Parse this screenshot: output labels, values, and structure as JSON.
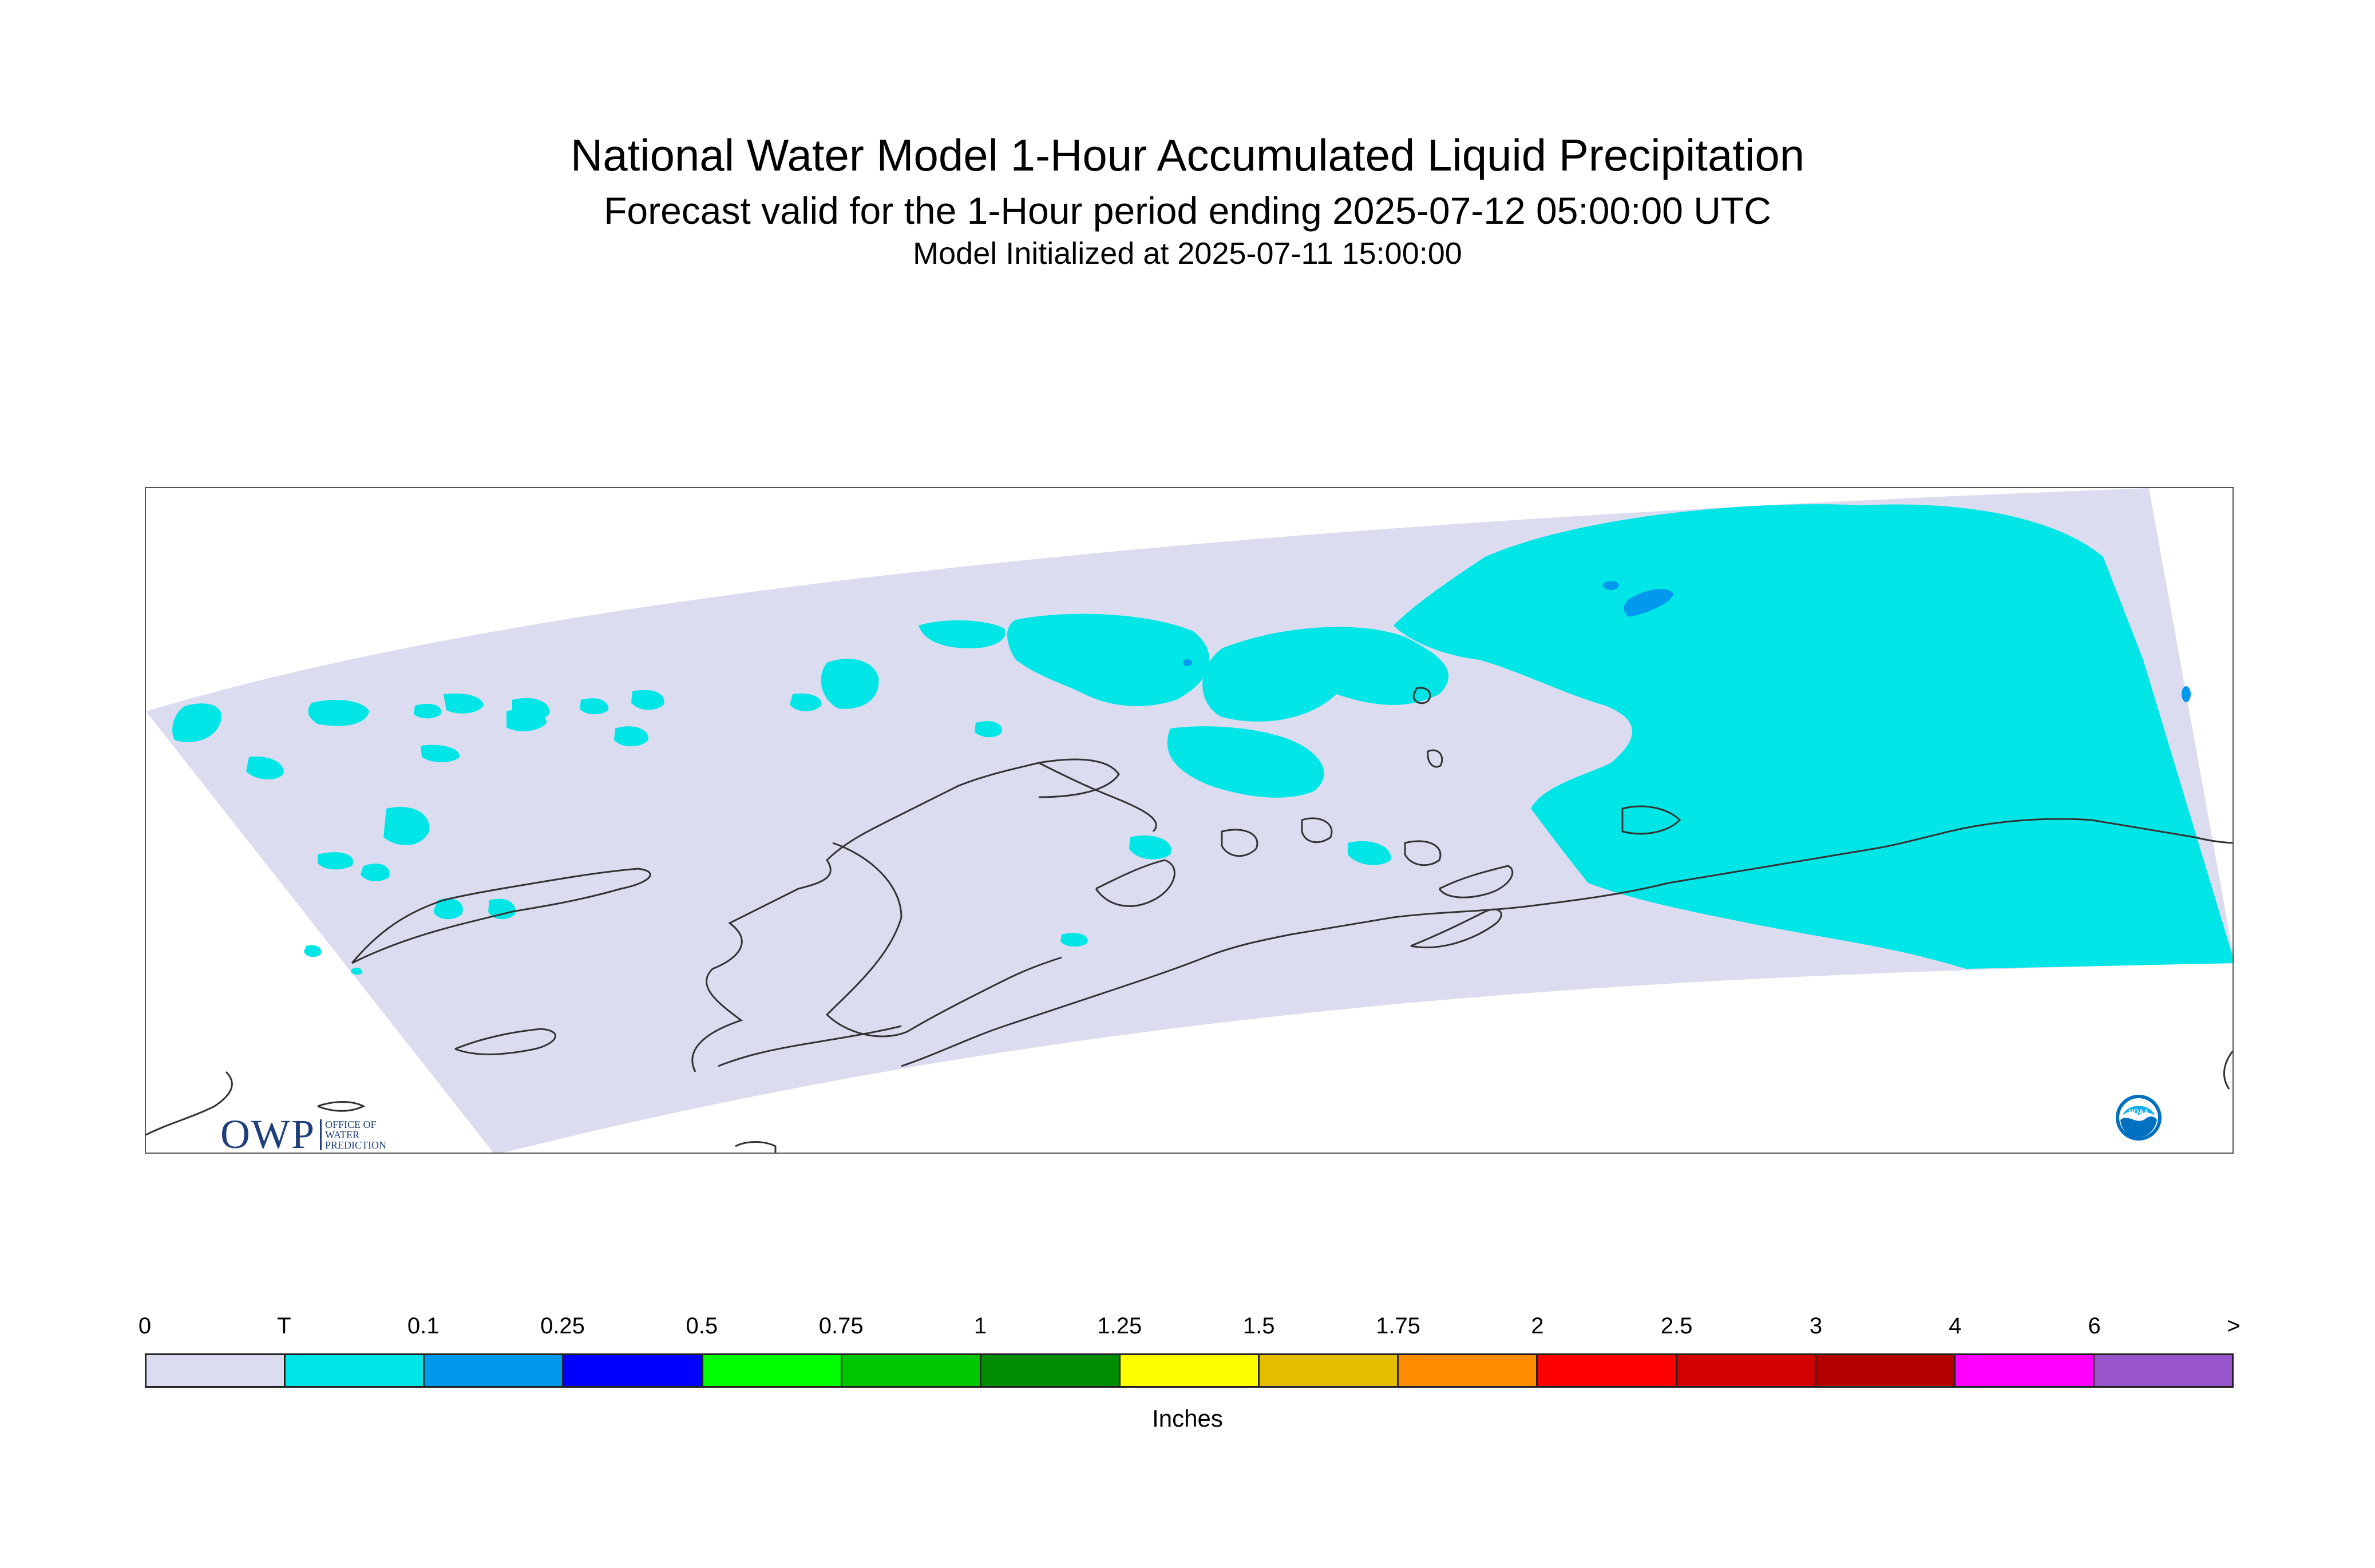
{
  "title": {
    "line1": "National Water Model 1-Hour Accumulated Liquid Precipitation",
    "line2": "Forecast valid for the 1-Hour period ending 2025-07-12 05:00:00 UTC",
    "line3": "Model Initialized at 2025-07-11 15:00:00"
  },
  "map": {
    "domain_color": "#dcdcf0",
    "trace_color": "#00e6e6",
    "light_color": "#0099ee",
    "coast_color": "#333333",
    "region": "Alaska"
  },
  "logos": {
    "owp_mark": "OWP",
    "owp_text": [
      "OFFICE OF",
      "WATER",
      "PREDICTION"
    ],
    "noaa_text": "NOAA"
  },
  "legend": {
    "labels": [
      "0",
      "T",
      "0.1",
      "0.25",
      "0.5",
      "0.75",
      "1",
      "1.25",
      "1.5",
      "1.75",
      "2",
      "2.5",
      "3",
      "4",
      "6",
      ">"
    ],
    "colors": [
      "#dcdcf0",
      "#00e6e6",
      "#0099ee",
      "#0000ff",
      "#00ff00",
      "#00c800",
      "#008c00",
      "#ffff00",
      "#e6be00",
      "#ff8c00",
      "#ff0000",
      "#d20000",
      "#b40000",
      "#ff00ff",
      "#9955cc"
    ],
    "units": "Inches"
  }
}
